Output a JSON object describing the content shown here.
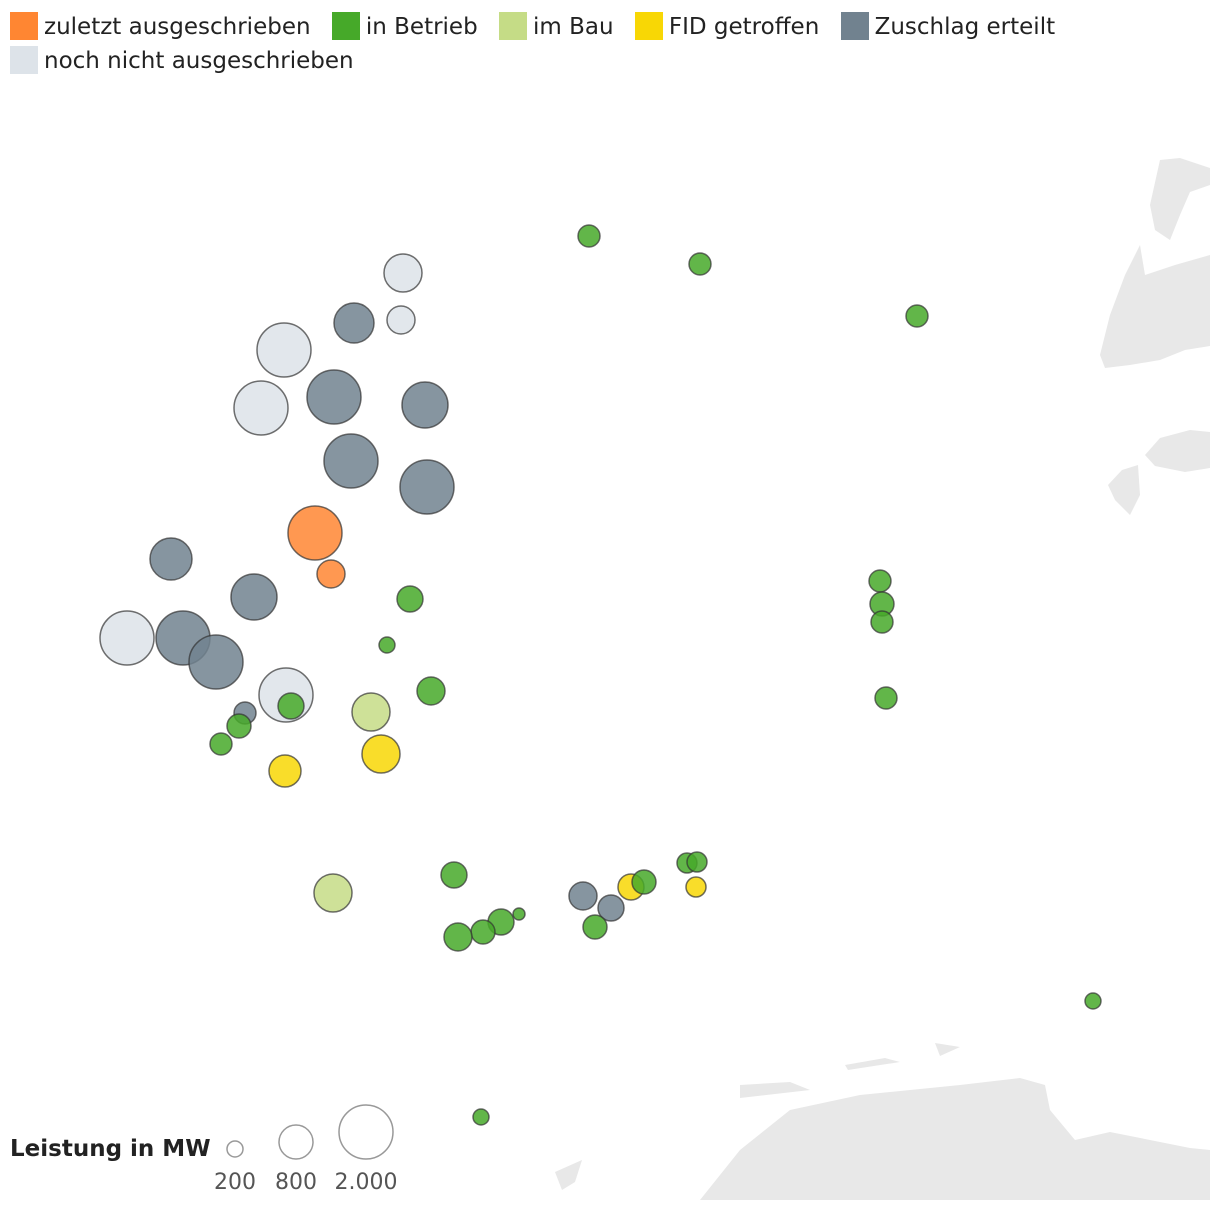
{
  "legend": {
    "items": [
      {
        "key": "zuletzt",
        "label": "zuletzt ausgeschrieben",
        "color": "#ff8632"
      },
      {
        "key": "betrieb",
        "label": "in Betrieb",
        "color": "#46a929"
      },
      {
        "key": "bau",
        "label": "im Bau",
        "color": "#c5dc86"
      },
      {
        "key": "fid",
        "label": "FID getroffen",
        "color": "#f8d705"
      },
      {
        "key": "zuschlag",
        "label": "Zuschlag erteilt",
        "color": "#71828f"
      },
      {
        "key": "nicht",
        "label": "noch nicht ausgeschrieben",
        "color": "#dde3e9"
      }
    ]
  },
  "size_legend": {
    "title": "Leistung in MW",
    "values": [
      {
        "label": "200",
        "mw": 200
      },
      {
        "label": "800",
        "mw": 800
      },
      {
        "label": "2.000",
        "mw": 2000
      }
    ]
  },
  "land_color": "#e8e8e8"
}
